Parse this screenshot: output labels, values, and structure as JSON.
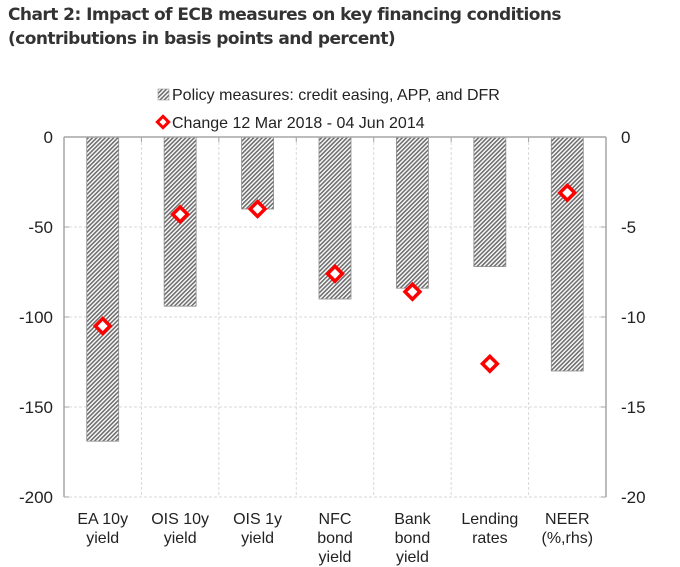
{
  "title": "Chart 2: Impact of ECB measures on key financing conditions (contributions in basis points and percent)",
  "chart_data": {
    "type": "bar",
    "title": "Chart 2: Impact of ECB measures on key financing conditions (contributions in basis points and percent)",
    "xlabel": "",
    "ylabel": "",
    "categories": [
      [
        "EA 10y",
        "yield"
      ],
      [
        "OIS 10y",
        "yield"
      ],
      [
        "OIS 1y",
        "yield"
      ],
      [
        "NFC",
        "bond",
        "yield"
      ],
      [
        "Bank",
        "bond",
        "yield"
      ],
      [
        "Lending",
        "rates"
      ],
      [
        "NEER",
        "(%,rhs)"
      ]
    ],
    "ylim": [
      -200,
      0
    ],
    "yticks": [
      0,
      -50,
      -100,
      -150,
      -200
    ],
    "y2lim": [
      -20,
      0
    ],
    "y2ticks": [
      0,
      -5,
      -10,
      -15,
      -20
    ],
    "grid": true,
    "legend_position": "top-center",
    "series": [
      {
        "name": "Policy measures: credit easing, APP, and DFR",
        "type": "bar",
        "style": "hatched-gray",
        "values_lhs_bp": [
          -169,
          -94,
          -40,
          -90,
          -84,
          -72,
          null
        ],
        "values_rhs_pct": [
          null,
          null,
          null,
          null,
          null,
          null,
          -13.0
        ]
      },
      {
        "name": "Change 12 Mar 2018 - 04 Jun 2014",
        "type": "scatter",
        "marker": "diamond",
        "color": "#ff0000",
        "values_lhs_bp": [
          -105,
          -43,
          -40,
          -76,
          -86,
          -126,
          null
        ],
        "values_rhs_pct": [
          null,
          null,
          null,
          null,
          null,
          null,
          -3.1
        ]
      }
    ]
  },
  "colors": {
    "marker": "#ff0000",
    "bar_dark": "#6e6e6e",
    "bar_light": "#ffffff",
    "axis": "#a6a6a6",
    "grid": "#d9d9d9"
  }
}
